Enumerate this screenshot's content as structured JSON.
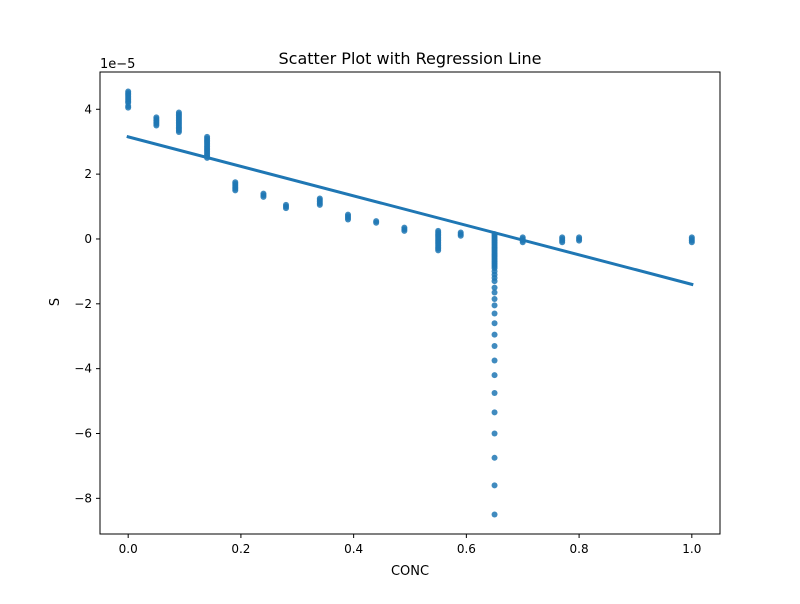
{
  "chart_data": {
    "type": "scatter",
    "title": "Scatter Plot with Regression Line",
    "xlabel": "CONC",
    "ylabel": "S",
    "y_scale_label": "1e−5",
    "xlim": [
      -0.05,
      1.05
    ],
    "ylim": [
      -9.1e-05,
      5.15e-05
    ],
    "xticks": [
      0.0,
      0.2,
      0.4,
      0.6,
      0.8,
      1.0
    ],
    "xtick_labels": [
      "0.0",
      "0.2",
      "0.4",
      "0.6",
      "0.8",
      "1.0"
    ],
    "yticks": [
      -8e-05,
      -6e-05,
      -4e-05,
      -2e-05,
      0,
      2e-05,
      4e-05
    ],
    "ytick_labels": [
      "−8",
      "−6",
      "−4",
      "−2",
      "0",
      "2",
      "4"
    ],
    "grid": false,
    "colors": {
      "points": "#1f77b4",
      "line": "#1f77b4"
    },
    "series": [
      {
        "type": "scatter",
        "points": [
          [
            0.0,
            4.55e-05
          ],
          [
            0.0,
            4.5e-05
          ],
          [
            0.0,
            4.45e-05
          ],
          [
            0.0,
            4.4e-05
          ],
          [
            0.0,
            4.35e-05
          ],
          [
            0.0,
            4.3e-05
          ],
          [
            0.0,
            4.25e-05
          ],
          [
            0.0,
            4.2e-05
          ],
          [
            0.0,
            4.1e-05
          ],
          [
            0.0,
            4.05e-05
          ],
          [
            0.05,
            3.75e-05
          ],
          [
            0.05,
            3.7e-05
          ],
          [
            0.05,
            3.65e-05
          ],
          [
            0.05,
            3.6e-05
          ],
          [
            0.05,
            3.55e-05
          ],
          [
            0.05,
            3.5e-05
          ],
          [
            0.09,
            3.9e-05
          ],
          [
            0.09,
            3.85e-05
          ],
          [
            0.09,
            3.8e-05
          ],
          [
            0.09,
            3.75e-05
          ],
          [
            0.09,
            3.7e-05
          ],
          [
            0.09,
            3.65e-05
          ],
          [
            0.09,
            3.6e-05
          ],
          [
            0.09,
            3.55e-05
          ],
          [
            0.09,
            3.5e-05
          ],
          [
            0.09,
            3.45e-05
          ],
          [
            0.09,
            3.4e-05
          ],
          [
            0.09,
            3.35e-05
          ],
          [
            0.09,
            3.3e-05
          ],
          [
            0.14,
            3.15e-05
          ],
          [
            0.14,
            3.1e-05
          ],
          [
            0.14,
            3.05e-05
          ],
          [
            0.14,
            3e-05
          ],
          [
            0.14,
            2.95e-05
          ],
          [
            0.14,
            2.9e-05
          ],
          [
            0.14,
            2.85e-05
          ],
          [
            0.14,
            2.8e-05
          ],
          [
            0.14,
            2.75e-05
          ],
          [
            0.14,
            2.7e-05
          ],
          [
            0.14,
            2.65e-05
          ],
          [
            0.14,
            2.6e-05
          ],
          [
            0.14,
            2.55e-05
          ],
          [
            0.14,
            2.5e-05
          ],
          [
            0.19,
            1.75e-05
          ],
          [
            0.19,
            1.7e-05
          ],
          [
            0.19,
            1.65e-05
          ],
          [
            0.19,
            1.6e-05
          ],
          [
            0.19,
            1.55e-05
          ],
          [
            0.19,
            1.5e-05
          ],
          [
            0.24,
            1.4e-05
          ],
          [
            0.24,
            1.35e-05
          ],
          [
            0.24,
            1.3e-05
          ],
          [
            0.28,
            1.05e-05
          ],
          [
            0.28,
            1e-05
          ],
          [
            0.28,
            9.5e-06
          ],
          [
            0.34,
            1.25e-05
          ],
          [
            0.34,
            1.2e-05
          ],
          [
            0.34,
            1.15e-05
          ],
          [
            0.34,
            1.1e-05
          ],
          [
            0.34,
            1.05e-05
          ],
          [
            0.39,
            7.5e-06
          ],
          [
            0.39,
            7e-06
          ],
          [
            0.39,
            6.5e-06
          ],
          [
            0.39,
            6e-06
          ],
          [
            0.44,
            5.5e-06
          ],
          [
            0.44,
            5e-06
          ],
          [
            0.49,
            3.5e-06
          ],
          [
            0.49,
            3e-06
          ],
          [
            0.49,
            2.5e-06
          ],
          [
            0.55,
            2.5e-06
          ],
          [
            0.55,
            2e-06
          ],
          [
            0.55,
            1.5e-06
          ],
          [
            0.55,
            1e-06
          ],
          [
            0.55,
            5e-07
          ],
          [
            0.55,
            0.0
          ],
          [
            0.55,
            -5e-07
          ],
          [
            0.55,
            -1e-06
          ],
          [
            0.55,
            -1.5e-06
          ],
          [
            0.55,
            -2e-06
          ],
          [
            0.55,
            -2.5e-06
          ],
          [
            0.55,
            -3e-06
          ],
          [
            0.55,
            -3.5e-06
          ],
          [
            0.59,
            2e-06
          ],
          [
            0.59,
            1.5e-06
          ],
          [
            0.59,
            1e-06
          ],
          [
            0.65,
            1.5e-06
          ],
          [
            0.65,
            1e-06
          ],
          [
            0.65,
            5e-07
          ],
          [
            0.65,
            0.0
          ],
          [
            0.65,
            -5e-07
          ],
          [
            0.65,
            -1e-06
          ],
          [
            0.65,
            -1.5e-06
          ],
          [
            0.65,
            -2e-06
          ],
          [
            0.65,
            -2.5e-06
          ],
          [
            0.65,
            -3e-06
          ],
          [
            0.65,
            -3.5e-06
          ],
          [
            0.65,
            -4e-06
          ],
          [
            0.65,
            -4.5e-06
          ],
          [
            0.65,
            -5e-06
          ],
          [
            0.65,
            -5.5e-06
          ],
          [
            0.65,
            -6e-06
          ],
          [
            0.65,
            -6.5e-06
          ],
          [
            0.65,
            -7e-06
          ],
          [
            0.65,
            -7.5e-06
          ],
          [
            0.65,
            -8e-06
          ],
          [
            0.65,
            -8.5e-06
          ],
          [
            0.65,
            -9e-06
          ],
          [
            0.65,
            -1e-05
          ],
          [
            0.65,
            -1.1e-05
          ],
          [
            0.65,
            -1.2e-05
          ],
          [
            0.65,
            -1.3e-05
          ],
          [
            0.65,
            -1.5e-05
          ],
          [
            0.65,
            -1.65e-05
          ],
          [
            0.65,
            -1.85e-05
          ],
          [
            0.65,
            -2.05e-05
          ],
          [
            0.65,
            -2.3e-05
          ],
          [
            0.65,
            -2.6e-05
          ],
          [
            0.65,
            -2.95e-05
          ],
          [
            0.65,
            -3.3e-05
          ],
          [
            0.65,
            -3.75e-05
          ],
          [
            0.65,
            -4.2e-05
          ],
          [
            0.65,
            -4.75e-05
          ],
          [
            0.65,
            -5.35e-05
          ],
          [
            0.65,
            -6e-05
          ],
          [
            0.65,
            -6.75e-05
          ],
          [
            0.65,
            -7.6e-05
          ],
          [
            0.65,
            -8.5e-05
          ],
          [
            0.7,
            5e-07
          ],
          [
            0.7,
            0.0
          ],
          [
            0.7,
            -5e-07
          ],
          [
            0.7,
            -1e-06
          ],
          [
            0.77,
            5e-07
          ],
          [
            0.77,
            0.0
          ],
          [
            0.77,
            -5e-07
          ],
          [
            0.77,
            -1e-06
          ],
          [
            0.8,
            5e-07
          ],
          [
            0.8,
            0.0
          ],
          [
            0.8,
            -5e-07
          ],
          [
            1.0,
            5e-07
          ],
          [
            1.0,
            0.0
          ],
          [
            1.0,
            -5e-07
          ],
          [
            1.0,
            -1e-06
          ]
        ]
      },
      {
        "type": "line",
        "x": [
          0.0,
          1.0
        ],
        "y": [
          3.15e-05,
          -1.4e-05
        ]
      }
    ]
  }
}
